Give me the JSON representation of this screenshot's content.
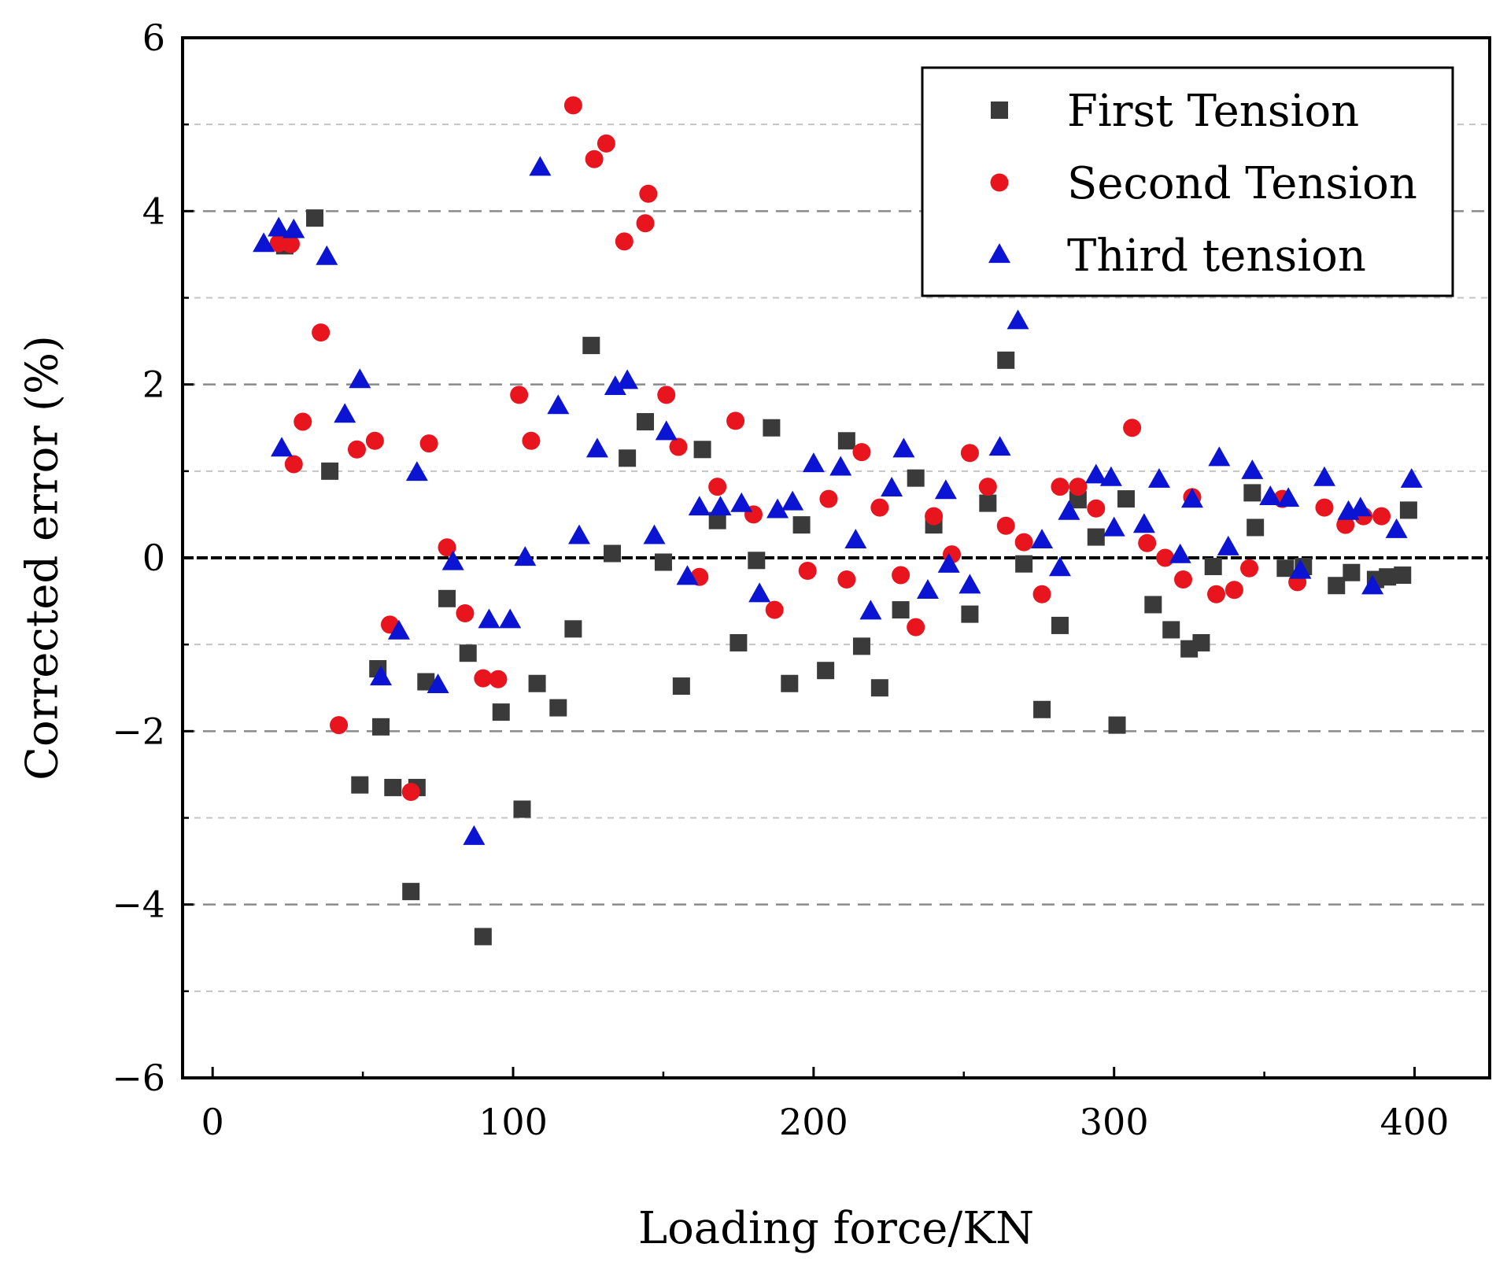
{
  "chart_data": {
    "type": "scatter",
    "title": "",
    "xlabel": "Loading force/KN",
    "ylabel": "Corrected error (%)",
    "xlim": [
      -10,
      425
    ],
    "ylim": [
      -6,
      6
    ],
    "xticks": [
      {
        "value": 0,
        "label": "0"
      },
      {
        "value": 100,
        "label": "100"
      },
      {
        "value": 200,
        "label": "200"
      },
      {
        "value": 300,
        "label": "300"
      },
      {
        "value": 400,
        "label": "400"
      }
    ],
    "yticks": [
      {
        "value": 6,
        "label": "6"
      },
      {
        "value": 4,
        "label": "4"
      },
      {
        "value": 2,
        "label": "2"
      },
      {
        "value": 0,
        "label": "0"
      },
      {
        "value": -2,
        "label": "−2"
      },
      {
        "value": -4,
        "label": "−4"
      },
      {
        "value": -6,
        "label": "−6"
      }
    ],
    "major_gridlines": [
      4,
      2,
      -2,
      -4
    ],
    "minor_gridlines": [
      5,
      3,
      1,
      -1,
      -3,
      -5
    ],
    "reference_line": 0,
    "legend_position": "top-right",
    "series": [
      {
        "name": "First Tension",
        "marker": "square",
        "color": "#3a3a3a",
        "points": [
          [
            24,
            3.6
          ],
          [
            34,
            3.92
          ],
          [
            39,
            1.0
          ],
          [
            49,
            -2.62
          ],
          [
            55,
            -1.28
          ],
          [
            56,
            -1.95
          ],
          [
            60,
            -2.65
          ],
          [
            66,
            -3.85
          ],
          [
            68,
            -2.65
          ],
          [
            71,
            -1.43
          ],
          [
            78,
            -0.47
          ],
          [
            85,
            -1.1
          ],
          [
            90,
            -4.37
          ],
          [
            96,
            -1.78
          ],
          [
            103,
            -2.9
          ],
          [
            108,
            -1.45
          ],
          [
            115,
            -1.73
          ],
          [
            120,
            -0.82
          ],
          [
            126,
            2.45
          ],
          [
            133,
            0.05
          ],
          [
            138,
            1.15
          ],
          [
            144,
            1.57
          ],
          [
            150,
            -0.05
          ],
          [
            156,
            -1.48
          ],
          [
            163,
            1.25
          ],
          [
            168,
            0.43
          ],
          [
            175,
            -0.98
          ],
          [
            181,
            -0.03
          ],
          [
            186,
            1.5
          ],
          [
            192,
            -1.45
          ],
          [
            196,
            0.38
          ],
          [
            204,
            -1.3
          ],
          [
            211,
            1.35
          ],
          [
            216,
            -1.02
          ],
          [
            222,
            -1.5
          ],
          [
            229,
            -0.6
          ],
          [
            234,
            0.92
          ],
          [
            240,
            0.38
          ],
          [
            252,
            -0.65
          ],
          [
            258,
            0.63
          ],
          [
            264,
            2.28
          ],
          [
            270,
            -0.07
          ],
          [
            276,
            -1.75
          ],
          [
            282,
            -0.78
          ],
          [
            288,
            0.67
          ],
          [
            294,
            0.24
          ],
          [
            301,
            -1.93
          ],
          [
            304,
            0.68
          ],
          [
            313,
            -0.54
          ],
          [
            319,
            -0.83
          ],
          [
            325,
            -1.05
          ],
          [
            329,
            -0.98
          ],
          [
            333,
            -0.1
          ],
          [
            346,
            0.75
          ],
          [
            347,
            0.35
          ],
          [
            357,
            -0.12
          ],
          [
            363,
            -0.1
          ],
          [
            374,
            -0.32
          ],
          [
            379,
            -0.17
          ],
          [
            387,
            -0.25
          ],
          [
            391,
            -0.22
          ],
          [
            396,
            -0.2
          ],
          [
            398,
            0.55
          ]
        ]
      },
      {
        "name": "Second Tension",
        "marker": "circle",
        "color": "#e8141e",
        "points": [
          [
            22,
            3.63
          ],
          [
            26,
            3.62
          ],
          [
            27,
            1.08
          ],
          [
            30,
            1.57
          ],
          [
            36,
            2.6
          ],
          [
            42,
            -1.93
          ],
          [
            48,
            1.25
          ],
          [
            54,
            1.35
          ],
          [
            59,
            -0.77
          ],
          [
            66,
            -2.7
          ],
          [
            72,
            1.32
          ],
          [
            78,
            0.12
          ],
          [
            84,
            -0.64
          ],
          [
            90,
            -1.39
          ],
          [
            95,
            -1.4
          ],
          [
            102,
            1.88
          ],
          [
            106,
            1.35
          ],
          [
            120,
            5.22
          ],
          [
            127,
            4.6
          ],
          [
            131,
            4.78
          ],
          [
            137,
            3.65
          ],
          [
            144,
            3.86
          ],
          [
            145,
            4.2
          ],
          [
            151,
            1.88
          ],
          [
            155,
            1.28
          ],
          [
            162,
            -0.22
          ],
          [
            168,
            0.82
          ],
          [
            174,
            1.58
          ],
          [
            180,
            0.5
          ],
          [
            187,
            -0.6
          ],
          [
            198,
            -0.15
          ],
          [
            205,
            0.68
          ],
          [
            211,
            -0.25
          ],
          [
            216,
            1.22
          ],
          [
            222,
            0.58
          ],
          [
            229,
            -0.2
          ],
          [
            234,
            -0.8
          ],
          [
            240,
            0.48
          ],
          [
            246,
            0.04
          ],
          [
            252,
            1.21
          ],
          [
            258,
            0.82
          ],
          [
            264,
            0.37
          ],
          [
            270,
            0.18
          ],
          [
            276,
            -0.42
          ],
          [
            282,
            0.82
          ],
          [
            288,
            0.82
          ],
          [
            294,
            0.57
          ],
          [
            306,
            1.5
          ],
          [
            311,
            0.17
          ],
          [
            317,
            0.0
          ],
          [
            323,
            -0.25
          ],
          [
            326,
            0.7
          ],
          [
            334,
            -0.42
          ],
          [
            340,
            -0.37
          ],
          [
            345,
            -0.12
          ],
          [
            356,
            0.68
          ],
          [
            361,
            -0.28
          ],
          [
            370,
            0.58
          ],
          [
            377,
            0.38
          ],
          [
            383,
            0.48
          ],
          [
            389,
            0.48
          ]
        ]
      },
      {
        "name": "Third tension",
        "marker": "triangle",
        "color": "#0a14d2",
        "points": [
          [
            17,
            3.62
          ],
          [
            22,
            3.8
          ],
          [
            23,
            1.26
          ],
          [
            27,
            3.78
          ],
          [
            38,
            3.47
          ],
          [
            44,
            1.65
          ],
          [
            49,
            2.05
          ],
          [
            56,
            -1.38
          ],
          [
            62,
            -0.85
          ],
          [
            68,
            0.98
          ],
          [
            75,
            -1.47
          ],
          [
            80,
            -0.05
          ],
          [
            87,
            -3.22
          ],
          [
            92,
            -0.72
          ],
          [
            99,
            -0.72
          ],
          [
            104,
            0.0
          ],
          [
            109,
            4.5
          ],
          [
            115,
            1.75
          ],
          [
            122,
            0.25
          ],
          [
            128,
            1.25
          ],
          [
            134,
            1.97
          ],
          [
            138,
            2.04
          ],
          [
            147,
            0.25
          ],
          [
            151,
            1.45
          ],
          [
            158,
            -0.22
          ],
          [
            162,
            0.58
          ],
          [
            169,
            0.58
          ],
          [
            176,
            0.62
          ],
          [
            182,
            -0.42
          ],
          [
            188,
            0.55
          ],
          [
            193,
            0.64
          ],
          [
            200,
            1.08
          ],
          [
            209,
            1.04
          ],
          [
            214,
            0.2
          ],
          [
            219,
            -0.62
          ],
          [
            226,
            0.8
          ],
          [
            230,
            1.25
          ],
          [
            238,
            -0.38
          ],
          [
            244,
            0.77
          ],
          [
            245,
            -0.08
          ],
          [
            252,
            -0.32
          ],
          [
            262,
            1.27
          ],
          [
            268,
            2.73
          ],
          [
            276,
            0.2
          ],
          [
            282,
            -0.12
          ],
          [
            285,
            0.53
          ],
          [
            294,
            0.95
          ],
          [
            300,
            0.34
          ],
          [
            299,
            0.92
          ],
          [
            310,
            0.38
          ],
          [
            315,
            0.9
          ],
          [
            322,
            0.03
          ],
          [
            326,
            0.67
          ],
          [
            335,
            1.15
          ],
          [
            338,
            0.12
          ],
          [
            346,
            1.0
          ],
          [
            352,
            0.7
          ],
          [
            358,
            0.68
          ],
          [
            362,
            -0.15
          ],
          [
            370,
            0.92
          ],
          [
            378,
            0.53
          ],
          [
            382,
            0.57
          ],
          [
            386,
            -0.33
          ],
          [
            394,
            0.32
          ],
          [
            399,
            0.9
          ]
        ]
      }
    ]
  }
}
